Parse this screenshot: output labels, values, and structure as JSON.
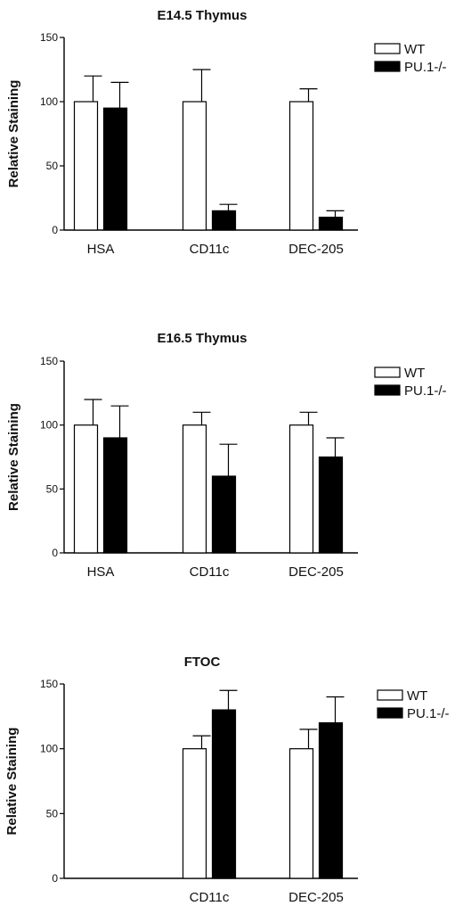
{
  "chart_data": [
    {
      "type": "bar",
      "title": "E14.5 Thymus",
      "ylabel": "Relative Staining",
      "ylim": [
        0,
        150
      ],
      "yticks": [
        0,
        50,
        100,
        150
      ],
      "categories": [
        "HSA",
        "CD11c",
        "DEC-205"
      ],
      "series": [
        {
          "name": "WT",
          "values": [
            100,
            100,
            100
          ],
          "errors": [
            20,
            25,
            10
          ],
          "color": "#ffffff"
        },
        {
          "name": "PU.1-/-",
          "values": [
            95,
            15,
            10
          ],
          "errors": [
            20,
            5,
            5
          ],
          "color": "#000000"
        }
      ],
      "legend_position": "top-right"
    },
    {
      "type": "bar",
      "title": "E16.5 Thymus",
      "ylabel": "Relative Staining",
      "ylim": [
        0,
        150
      ],
      "yticks": [
        0,
        50,
        100,
        150
      ],
      "categories": [
        "HSA",
        "CD11c",
        "DEC-205"
      ],
      "series": [
        {
          "name": "WT",
          "values": [
            100,
            100,
            100
          ],
          "errors": [
            20,
            10,
            10
          ],
          "color": "#ffffff"
        },
        {
          "name": "PU.1-/-",
          "values": [
            90,
            60,
            75
          ],
          "errors": [
            25,
            25,
            15
          ],
          "color": "#000000"
        }
      ],
      "legend_position": "top-right"
    },
    {
      "type": "bar",
      "title": "FTOC",
      "ylabel": "Relative Staining",
      "ylim": [
        0,
        150
      ],
      "yticks": [
        0,
        50,
        100,
        150
      ],
      "categories": [
        "",
        "CD11c",
        "DEC-205"
      ],
      "series": [
        {
          "name": "WT",
          "values": [
            null,
            100,
            100
          ],
          "errors": [
            null,
            10,
            15
          ],
          "color": "#ffffff"
        },
        {
          "name": "PU.1-/-",
          "values": [
            null,
            130,
            120
          ],
          "errors": [
            null,
            15,
            20
          ],
          "color": "#000000"
        }
      ],
      "legend_position": "top-right"
    }
  ]
}
